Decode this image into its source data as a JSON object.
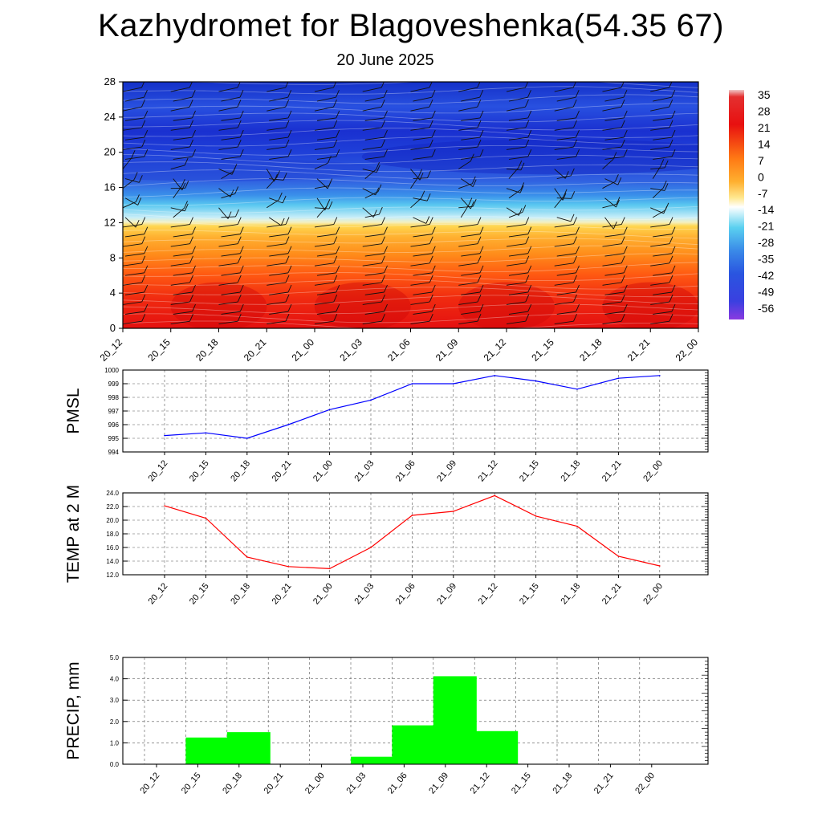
{
  "title": "Kazhydromet for Blagoveshenka(54.35 67)",
  "subtitle": "20 June 2025",
  "x_labels": [
    "20_12",
    "20_15",
    "20_18",
    "20_21",
    "21_00",
    "21_03",
    "21_06",
    "21_09",
    "21_12",
    "21_15",
    "21_18",
    "21_21",
    "22_00"
  ],
  "chart_data": [
    {
      "type": "heatmap",
      "title": "Kazhydromet for Blagoveshenka(54.35 67)",
      "subtitle": "20 June 2025",
      "x": [
        "20_12",
        "20_15",
        "20_18",
        "20_21",
        "21_00",
        "21_03",
        "21_06",
        "21_09",
        "21_12",
        "21_15",
        "21_18",
        "21_21",
        "22_00"
      ],
      "y_ticks": [
        "0",
        "4",
        "8",
        "12",
        "16",
        "20",
        "24",
        "28"
      ],
      "ylim": [
        0,
        28
      ],
      "colorbar_labels": [
        "35",
        "28",
        "21",
        "14",
        "7",
        "0",
        "-7",
        "-14",
        "-21",
        "-28",
        "-35",
        "-42",
        "-49",
        "-56"
      ],
      "colors": {
        "warm_low": "#e01010",
        "warm_mid": "#ff8c1a",
        "yellow": "#ffd24a",
        "cyan": "#5ad0f0",
        "blue": "#2a55e0",
        "dark_blue": "#1428c8"
      }
    },
    {
      "type": "line",
      "ylabel": "PMSL",
      "x": [
        "20_12",
        "20_15",
        "20_18",
        "20_21",
        "21_00",
        "21_03",
        "21_06",
        "21_09",
        "21_12",
        "21_15",
        "21_18",
        "21_21",
        "22_00"
      ],
      "values": [
        995.2,
        995.4,
        995.0,
        996.0,
        997.1,
        997.8,
        999.0,
        999.0,
        999.6,
        999.2,
        998.6,
        999.4,
        999.6
      ],
      "ylim": [
        994,
        1000
      ],
      "y_ticks": [
        "994",
        "995",
        "996",
        "997",
        "998",
        "999",
        "1000"
      ],
      "color": "#0000ff",
      "grid": true
    },
    {
      "type": "line",
      "ylabel": "TEMP at 2 M",
      "x": [
        "20_12",
        "20_15",
        "20_18",
        "20_21",
        "21_00",
        "21_03",
        "21_06",
        "21_09",
        "21_12",
        "21_15",
        "21_18",
        "21_21",
        "22_00"
      ],
      "values": [
        22.1,
        20.3,
        14.6,
        13.2,
        12.9,
        16.0,
        20.7,
        21.3,
        23.6,
        20.6,
        19.1,
        14.7,
        13.3
      ],
      "ylim": [
        12,
        24
      ],
      "y_ticks": [
        "12.0",
        "14.0",
        "16.0",
        "18.0",
        "20.0",
        "22.0",
        "24.0"
      ],
      "color": "#ff0000",
      "grid": true
    },
    {
      "type": "bar",
      "ylabel": "PRECIP, mm",
      "categories": [
        "20_12",
        "20_15",
        "20_18",
        "20_21",
        "21_00",
        "21_03",
        "21_06",
        "21_09",
        "21_12",
        "21_15",
        "21_18",
        "21_21",
        "22_00"
      ],
      "values": [
        0,
        1.25,
        1.5,
        0,
        0,
        0.35,
        1.82,
        4.12,
        1.55,
        0,
        0,
        0,
        0
      ],
      "ylim": [
        0,
        5
      ],
      "y_ticks": [
        "0.0",
        "1.0",
        "2.0",
        "3.0",
        "4.0",
        "5.0"
      ],
      "color": "#00ff00",
      "grid": true
    }
  ]
}
